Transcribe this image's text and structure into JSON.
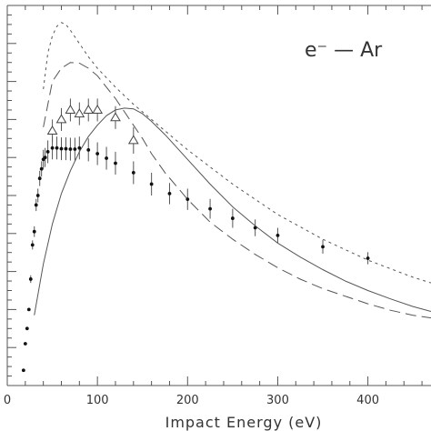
{
  "chart_data": {
    "type": "line",
    "title": "",
    "xlabel": "Impact Energy (eV)",
    "ylabel": "",
    "xlim": [
      0,
      470
    ],
    "ylim": [
      0,
      1.0
    ],
    "xticks": [
      0,
      100,
      200,
      300,
      400
    ],
    "annotation": "e⁻  —  Ar",
    "grid": false,
    "series": [
      {
        "style": "solid",
        "x": [
          30,
          40,
          50,
          60,
          70,
          80,
          90,
          100,
          110,
          120,
          130,
          140,
          150,
          160,
          175,
          200,
          225,
          250,
          275,
          300,
          325,
          350,
          375,
          400,
          425,
          450,
          470
        ],
        "y": [
          0.185,
          0.32,
          0.425,
          0.505,
          0.565,
          0.615,
          0.655,
          0.685,
          0.71,
          0.725,
          0.73,
          0.728,
          0.715,
          0.695,
          0.66,
          0.595,
          0.53,
          0.47,
          0.42,
          0.375,
          0.338,
          0.305,
          0.275,
          0.25,
          0.228,
          0.208,
          0.195
        ]
      },
      {
        "style": "short-dash",
        "x": [
          40,
          45,
          50,
          55,
          60,
          65,
          70,
          80,
          90,
          100,
          120,
          140,
          160,
          180,
          200,
          250,
          300,
          350,
          400,
          450,
          470
        ],
        "y": [
          0.78,
          0.875,
          0.92,
          0.945,
          0.955,
          0.95,
          0.935,
          0.9,
          0.865,
          0.835,
          0.785,
          0.74,
          0.7,
          0.66,
          0.62,
          0.53,
          0.45,
          0.385,
          0.33,
          0.285,
          0.27
        ]
      },
      {
        "style": "long-dash",
        "x": [
          40,
          50,
          60,
          70,
          80,
          90,
          100,
          110,
          120,
          130,
          140,
          150,
          160,
          175,
          200,
          225,
          250,
          275,
          300,
          325,
          350,
          375,
          400,
          425,
          450,
          470
        ],
        "y": [
          0.68,
          0.8,
          0.835,
          0.85,
          0.848,
          0.835,
          0.815,
          0.785,
          0.755,
          0.72,
          0.685,
          0.65,
          0.61,
          0.56,
          0.49,
          0.43,
          0.385,
          0.345,
          0.31,
          0.28,
          0.255,
          0.235,
          0.215,
          0.198,
          0.185,
          0.178
        ]
      },
      {
        "style": "filled-circle",
        "x": [
          18,
          20,
          22,
          24,
          26,
          28,
          30,
          32,
          34,
          36,
          38,
          40,
          42,
          45,
          50,
          55,
          60,
          65,
          70,
          75,
          80,
          90,
          100,
          110,
          120,
          140,
          160,
          180,
          200,
          225,
          250,
          275,
          300,
          350,
          400
        ],
        "y": [
          0.04,
          0.11,
          0.15,
          0.2,
          0.28,
          0.37,
          0.405,
          0.475,
          0.5,
          0.545,
          0.57,
          0.595,
          0.6,
          0.615,
          0.625,
          0.625,
          0.623,
          0.623,
          0.622,
          0.622,
          0.625,
          0.62,
          0.61,
          0.598,
          0.585,
          0.56,
          0.53,
          0.505,
          0.49,
          0.465,
          0.44,
          0.415,
          0.395,
          0.365,
          0.335
        ],
        "err": [
          0,
          0,
          0,
          0,
          0.01,
          0.012,
          0.014,
          0.016,
          0.018,
          0.02,
          0.02,
          0.025,
          0.025,
          0.03,
          0.03,
          0.03,
          0.03,
          0.03,
          0.03,
          0.03,
          0.03,
          0.03,
          0.03,
          0.03,
          0.03,
          0.03,
          0.03,
          0.028,
          0.028,
          0.026,
          0.025,
          0.022,
          0.02,
          0.018,
          0.016
        ]
      },
      {
        "style": "open-triangle",
        "x": [
          50,
          60,
          70,
          80,
          90,
          100,
          120,
          140
        ],
        "y": [
          0.67,
          0.7,
          0.725,
          0.715,
          0.725,
          0.725,
          0.705,
          0.645
        ],
        "err": [
          0.03,
          0.03,
          0.03,
          0.03,
          0.03,
          0.03,
          0.03,
          0.035
        ]
      }
    ]
  }
}
